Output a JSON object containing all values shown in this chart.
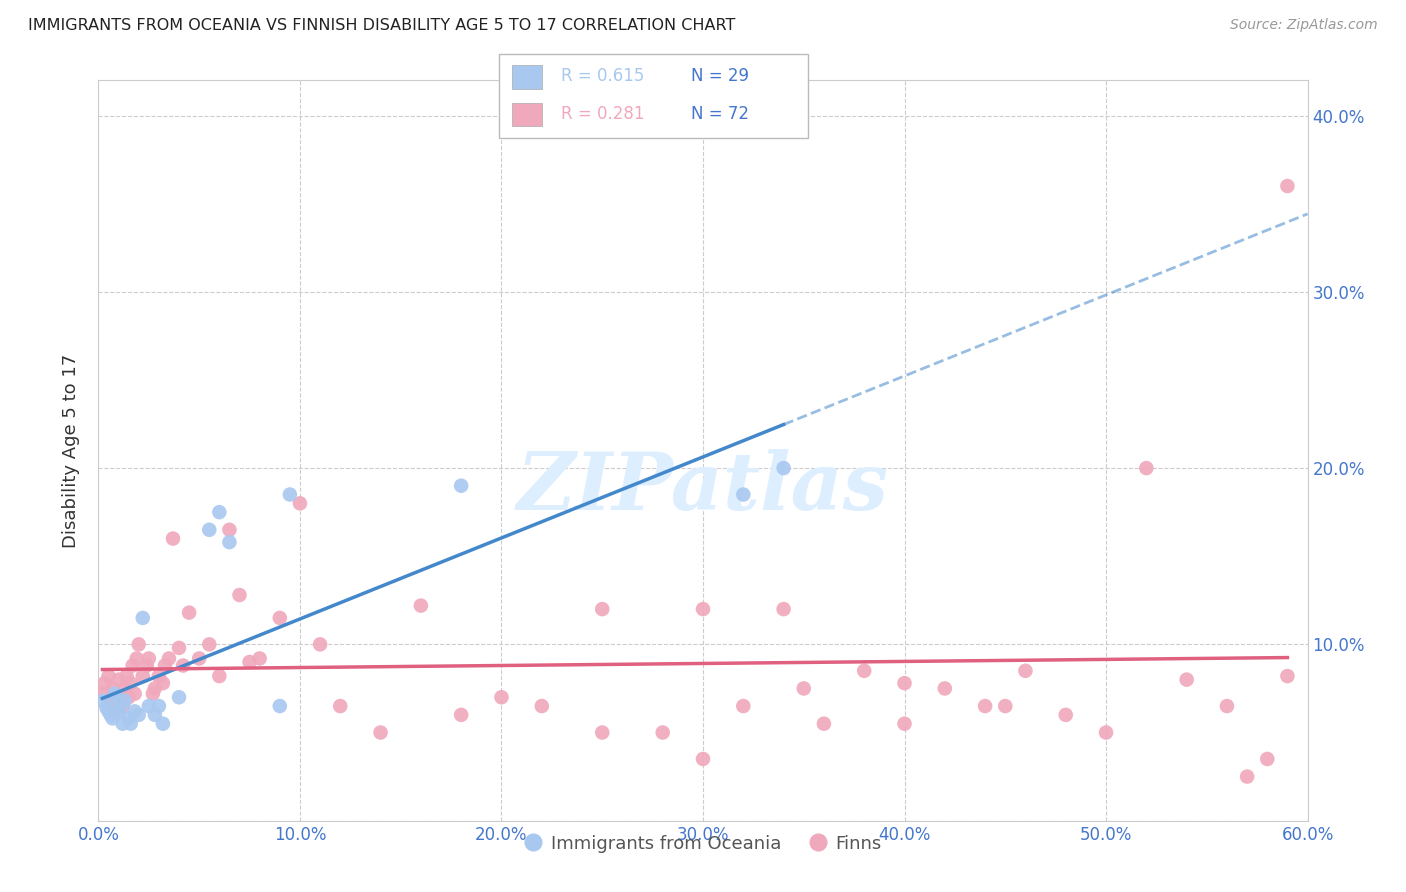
{
  "title": "IMMIGRANTS FROM OCEANIA VS FINNISH DISABILITY AGE 5 TO 17 CORRELATION CHART",
  "source": "Source: ZipAtlas.com",
  "ylabel": "Disability Age 5 to 17",
  "xlim": [
    0.0,
    0.6
  ],
  "ylim": [
    0.0,
    0.42
  ],
  "xticks": [
    0.0,
    0.1,
    0.2,
    0.3,
    0.4,
    0.5,
    0.6
  ],
  "yticks": [
    0.0,
    0.1,
    0.2,
    0.3,
    0.4
  ],
  "ytick_labels": [
    "",
    "10.0%",
    "20.0%",
    "30.0%",
    "40.0%"
  ],
  "xtick_labels": [
    "0.0%",
    "10.0%",
    "20.0%",
    "30.0%",
    "40.0%",
    "50.0%",
    "60.0%"
  ],
  "legend_labels": [
    "Immigrants from Oceania",
    "Finns"
  ],
  "oceania_color": "#a8c8f0",
  "finns_color": "#f0a8bc",
  "oceania_line_color": "#4488cc",
  "finns_line_color": "#e06080",
  "watermark_color": "#ddeeff",
  "oceania_x": [
    0.002,
    0.004,
    0.005,
    0.006,
    0.007,
    0.008,
    0.009,
    0.01,
    0.011,
    0.012,
    0.013,
    0.015,
    0.016,
    0.018,
    0.02,
    0.022,
    0.025,
    0.028,
    0.03,
    0.032,
    0.04,
    0.055,
    0.06,
    0.065,
    0.09,
    0.095,
    0.18,
    0.32,
    0.34
  ],
  "oceania_y": [
    0.068,
    0.064,
    0.062,
    0.06,
    0.058,
    0.072,
    0.07,
    0.062,
    0.065,
    0.055,
    0.068,
    0.058,
    0.055,
    0.062,
    0.06,
    0.115,
    0.065,
    0.06,
    0.065,
    0.055,
    0.07,
    0.165,
    0.175,
    0.158,
    0.065,
    0.185,
    0.19,
    0.185,
    0.2
  ],
  "finns_x": [
    0.002,
    0.003,
    0.005,
    0.006,
    0.007,
    0.008,
    0.009,
    0.01,
    0.011,
    0.012,
    0.013,
    0.014,
    0.015,
    0.016,
    0.017,
    0.018,
    0.019,
    0.02,
    0.022,
    0.024,
    0.025,
    0.027,
    0.028,
    0.03,
    0.032,
    0.033,
    0.035,
    0.037,
    0.04,
    0.042,
    0.045,
    0.05,
    0.055,
    0.06,
    0.065,
    0.07,
    0.075,
    0.08,
    0.09,
    0.1,
    0.11,
    0.12,
    0.14,
    0.16,
    0.18,
    0.2,
    0.22,
    0.25,
    0.28,
    0.3,
    0.32,
    0.34,
    0.36,
    0.38,
    0.4,
    0.42,
    0.44,
    0.46,
    0.48,
    0.5,
    0.52,
    0.54,
    0.56,
    0.57,
    0.58,
    0.59,
    0.25,
    0.3,
    0.35,
    0.4,
    0.45,
    0.59
  ],
  "finns_y": [
    0.072,
    0.078,
    0.082,
    0.068,
    0.075,
    0.062,
    0.07,
    0.08,
    0.068,
    0.065,
    0.075,
    0.082,
    0.07,
    0.078,
    0.088,
    0.072,
    0.092,
    0.1,
    0.082,
    0.088,
    0.092,
    0.072,
    0.075,
    0.082,
    0.078,
    0.088,
    0.092,
    0.16,
    0.098,
    0.088,
    0.118,
    0.092,
    0.1,
    0.082,
    0.165,
    0.128,
    0.09,
    0.092,
    0.115,
    0.18,
    0.1,
    0.065,
    0.05,
    0.122,
    0.06,
    0.07,
    0.065,
    0.05,
    0.05,
    0.035,
    0.065,
    0.12,
    0.055,
    0.085,
    0.055,
    0.075,
    0.065,
    0.085,
    0.06,
    0.05,
    0.2,
    0.08,
    0.065,
    0.025,
    0.035,
    0.36,
    0.12,
    0.12,
    0.075,
    0.078,
    0.065,
    0.082
  ],
  "oceania_R": 0.615,
  "oceania_N": 29,
  "finns_R": 0.281,
  "finns_N": 72
}
